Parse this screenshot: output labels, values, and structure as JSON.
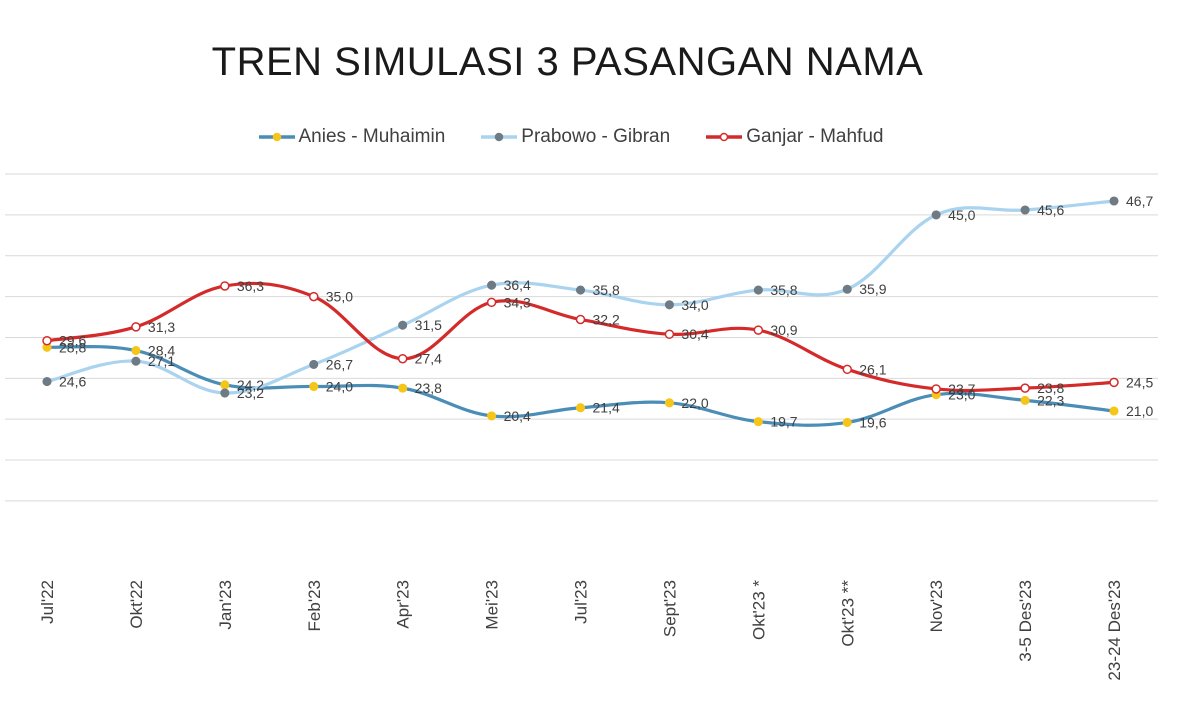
{
  "chart_data": {
    "type": "line",
    "title": "TREN SIMULASI 3 PASANGAN NAMA",
    "categories": [
      "Jul'22",
      "Okt'22",
      "Jan'23",
      "Feb'23",
      "Apr'23",
      "Mei'23",
      "Jul'23",
      "Sept'23",
      "Okt'23 *",
      "Okt'23 **",
      "Nov'23",
      "3-5 Des'23",
      "23-24 Des'23"
    ],
    "series": [
      {
        "name": "Anies - Muhaimin",
        "color": "#4a8db7",
        "marker": "#f5c518",
        "marker_style": "filled",
        "values": [
          28.8,
          28.4,
          24.2,
          24.0,
          23.8,
          20.4,
          21.4,
          22.0,
          19.7,
          19.6,
          23.0,
          22.3,
          21.0
        ]
      },
      {
        "name": "Prabowo - Gibran",
        "color": "#a9d3ef",
        "marker": "#6e7b85",
        "marker_style": "filled",
        "values": [
          24.6,
          27.1,
          23.2,
          26.7,
          31.5,
          36.4,
          35.8,
          34.0,
          35.8,
          35.9,
          45.0,
          45.6,
          46.7
        ]
      },
      {
        "name": "Ganjar - Mahfud",
        "color": "#d42a2a",
        "marker": "#ffffff",
        "marker_style": "hollow",
        "values": [
          29.6,
          31.3,
          36.3,
          35.0,
          27.4,
          34.3,
          32.2,
          30.4,
          30.9,
          26.1,
          23.7,
          23.8,
          24.5
        ]
      }
    ],
    "ylim": [
      10,
      50
    ],
    "grid": true,
    "legend_position": "top"
  }
}
